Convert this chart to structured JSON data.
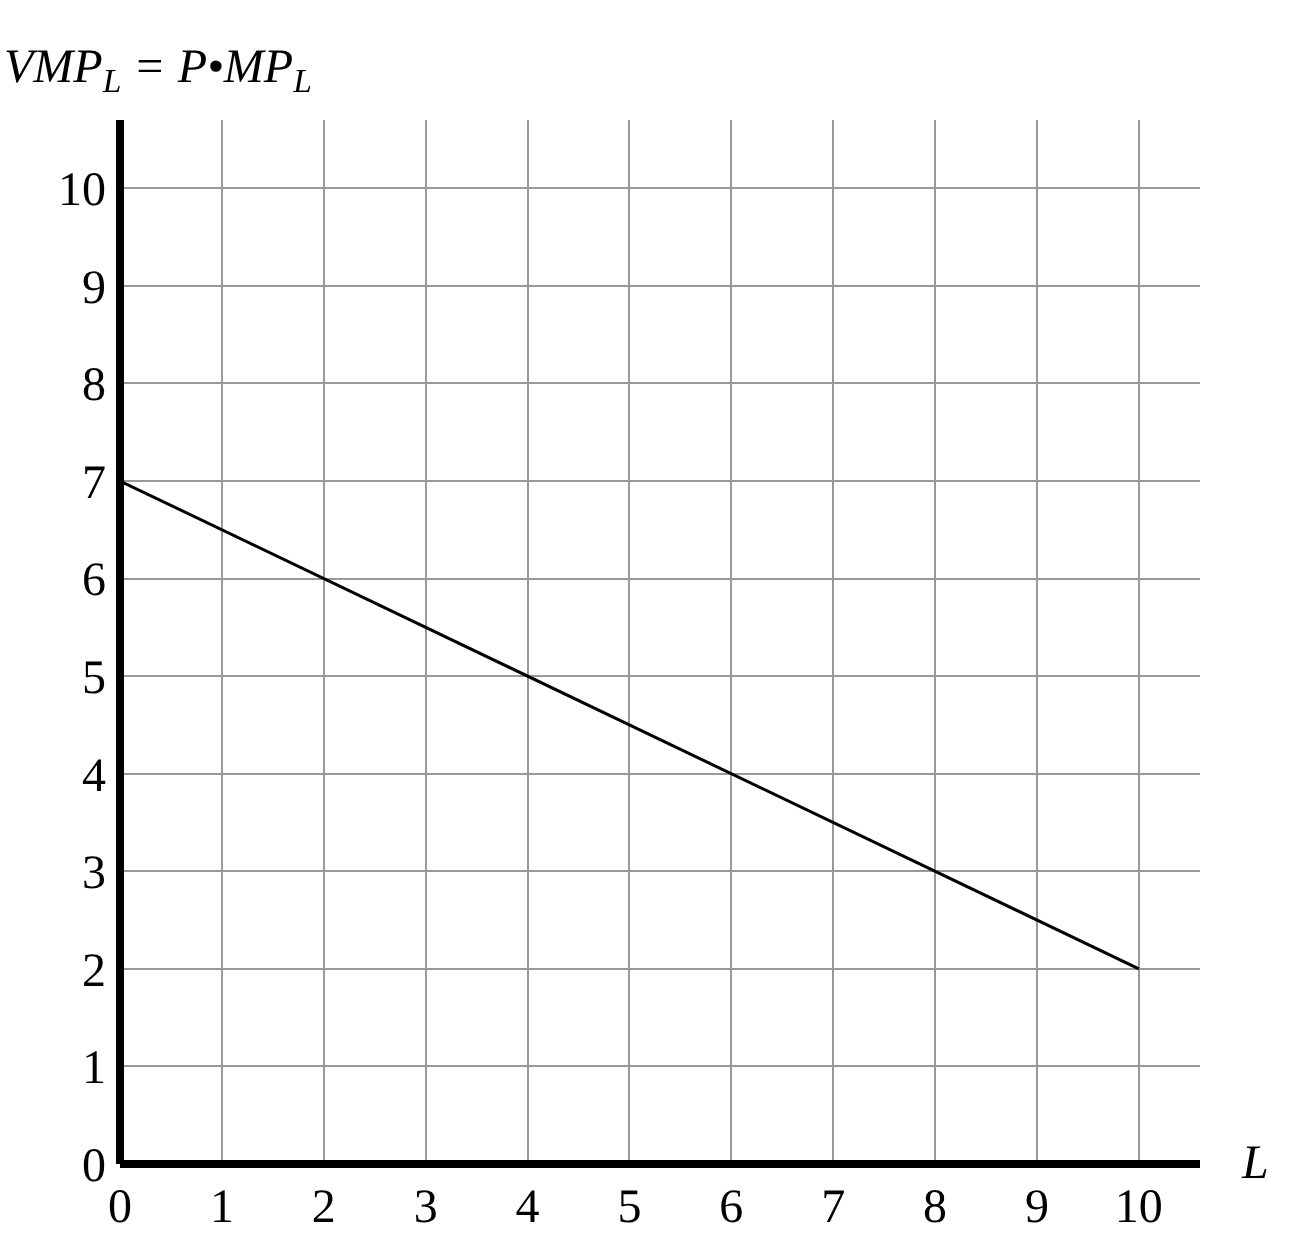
{
  "chart_data": {
    "type": "line",
    "xlabel": "L",
    "ylabel": "VMP$_{L}$ = P•MP$_{L}$",
    "x": [
      0,
      10
    ],
    "series": [
      {
        "color": "#000000",
        "values": [
          7,
          2
        ]
      }
    ],
    "xlim": [
      0,
      10.6
    ],
    "ylim": [
      0,
      10.7
    ],
    "xticks": [
      0,
      1,
      2,
      3,
      4,
      5,
      6,
      7,
      8,
      9,
      10
    ],
    "yticks": [
      0,
      1,
      2,
      3,
      4,
      5,
      6,
      7,
      8,
      9,
      10
    ],
    "grid": true,
    "legend": false,
    "marker": "none",
    "line_style": "solid"
  }
}
